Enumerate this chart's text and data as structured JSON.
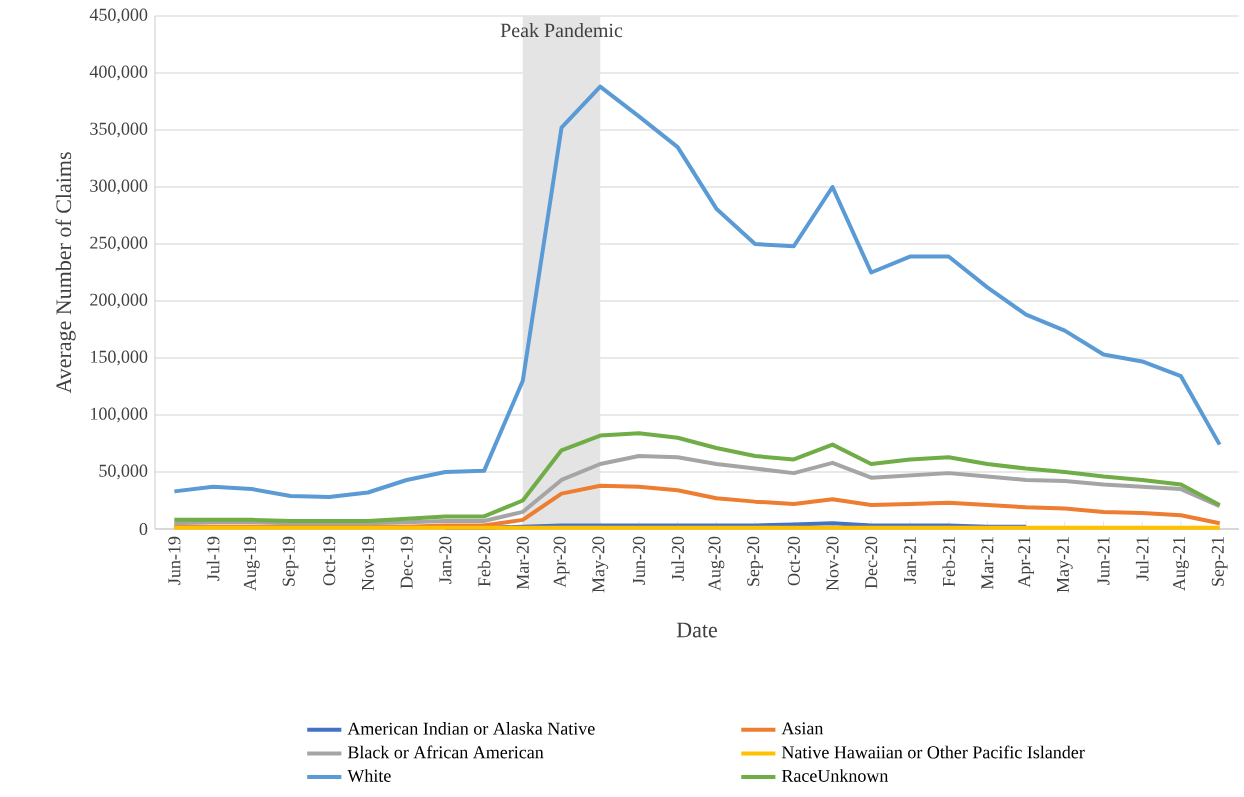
{
  "chart_data": {
    "type": "line",
    "xlabel": "Date",
    "ylabel": "Average Number of Claims",
    "categories": [
      "Jun-19",
      "Jul-19",
      "Aug-19",
      "Sep-19",
      "Oct-19",
      "Nov-19",
      "Dec-19",
      "Jan-20",
      "Feb-20",
      "Mar-20",
      "Apr-20",
      "May-20",
      "Jun-20",
      "Jul-20",
      "Aug-20",
      "Sep-20",
      "Oct-20",
      "Nov-20",
      "Dec-20",
      "Jan-21",
      "Feb-21",
      "Mar-21",
      "Apr-21",
      "May-21",
      "Jun-21",
      "Jul-21",
      "Aug-21",
      "Sep-21"
    ],
    "series": [
      {
        "name": "American Indian or Alaska Native",
        "color": "#4472c4",
        "values": [
          null,
          null,
          null,
          null,
          null,
          null,
          null,
          1000,
          1000,
          2000,
          3000,
          3000,
          3000,
          3000,
          3000,
          3000,
          4000,
          5000,
          3000,
          3000,
          3000,
          2000,
          2000,
          null,
          null,
          null,
          null,
          null
        ]
      },
      {
        "name": "Asian",
        "color": "#ed7d31",
        "values": [
          2000,
          2000,
          2000,
          2000,
          2000,
          2000,
          2000,
          3000,
          3000,
          8000,
          31000,
          38000,
          37000,
          34000,
          27000,
          24000,
          22000,
          26000,
          21000,
          22000,
          23000,
          21000,
          19000,
          18000,
          15000,
          14000,
          12000,
          5000
        ]
      },
      {
        "name": "Black or African American",
        "color": "#a5a5a5",
        "values": [
          5000,
          6000,
          6000,
          5000,
          5000,
          5000,
          6000,
          7000,
          7000,
          15000,
          43000,
          57000,
          64000,
          63000,
          57000,
          53000,
          49000,
          58000,
          45000,
          47000,
          49000,
          46000,
          43000,
          42000,
          39000,
          37000,
          35000,
          20000
        ]
      },
      {
        "name": "Native Hawaiian or Other Pacific Islander",
        "color": "#ffc000",
        "values": [
          1000,
          1000,
          1000,
          1000,
          1000,
          1000,
          1000,
          1000,
          1000,
          1000,
          1000,
          1000,
          1000,
          1000,
          1000,
          1000,
          1000,
          1000,
          1000,
          1000,
          1000,
          1000,
          1000,
          1000,
          1000,
          1000,
          1000,
          1000
        ]
      },
      {
        "name": "White",
        "color": "#5b9bd5",
        "values": [
          33000,
          37000,
          35000,
          29000,
          28000,
          32000,
          43000,
          50000,
          51000,
          130000,
          352000,
          388000,
          362000,
          335000,
          281000,
          250000,
          248000,
          300000,
          225000,
          239000,
          239000,
          212000,
          188000,
          174000,
          153000,
          147000,
          134000,
          74000
        ]
      },
      {
        "name": "RaceUnknown",
        "color": "#70ad47",
        "values": [
          8000,
          8000,
          8000,
          7000,
          7000,
          7000,
          9000,
          11000,
          11000,
          25000,
          69000,
          82000,
          84000,
          80000,
          71000,
          64000,
          61000,
          74000,
          57000,
          61000,
          63000,
          57000,
          53000,
          50000,
          46000,
          43000,
          39000,
          21000
        ]
      }
    ],
    "ylim": [
      0,
      450000
    ],
    "yticks": [
      0,
      {
        "value": 50000,
        "label": "50,000"
      },
      {
        "value": 100000,
        "label": "100,000"
      },
      {
        "value": 150000,
        "label": "150,000"
      },
      {
        "value": 200000,
        "label": "200,000"
      },
      {
        "value": 250000,
        "label": "250,000"
      },
      {
        "value": 300000,
        "label": "300,000"
      },
      {
        "value": 350000,
        "label": "350,000"
      },
      {
        "value": 400000,
        "label": "400,000"
      },
      {
        "value": 450000,
        "label": "450,000"
      }
    ],
    "bands": [
      {
        "axis": "x",
        "from": "Mar-20",
        "to": "May-20",
        "label": "Peak Pandemic",
        "color": "#e4e4e4"
      }
    ],
    "grid": "y",
    "legend": "bottom",
    "marker": "none",
    "line_style": "solid"
  }
}
